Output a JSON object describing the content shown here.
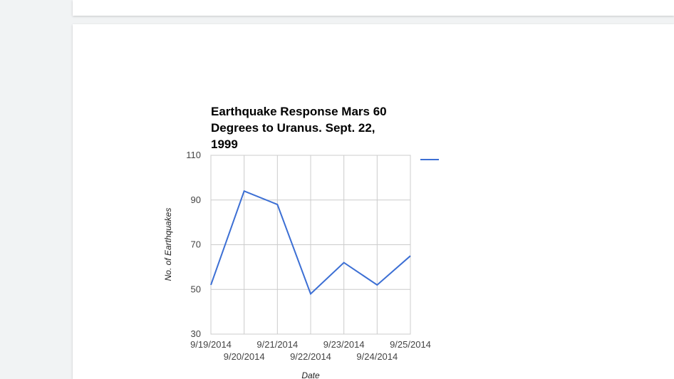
{
  "chart_data": {
    "type": "line",
    "title": "Earthquake Response Mars 60 Degrees to Uranus. Sept. 22, 1999",
    "x_label": "Date",
    "y_label": "No. of Earthquakes",
    "x": [
      "9/19/2014",
      "9/20/2014",
      "9/21/2014",
      "9/22/2014",
      "9/23/2014",
      "9/24/2014",
      "9/25/2014"
    ],
    "series": [
      {
        "color": "#3c6fd4",
        "values": [
          52,
          94,
          88,
          48,
          62,
          52,
          65
        ]
      }
    ],
    "ylim": [
      30,
      110
    ],
    "yticks": [
      30,
      50,
      70,
      90,
      110
    ],
    "grid": true
  }
}
